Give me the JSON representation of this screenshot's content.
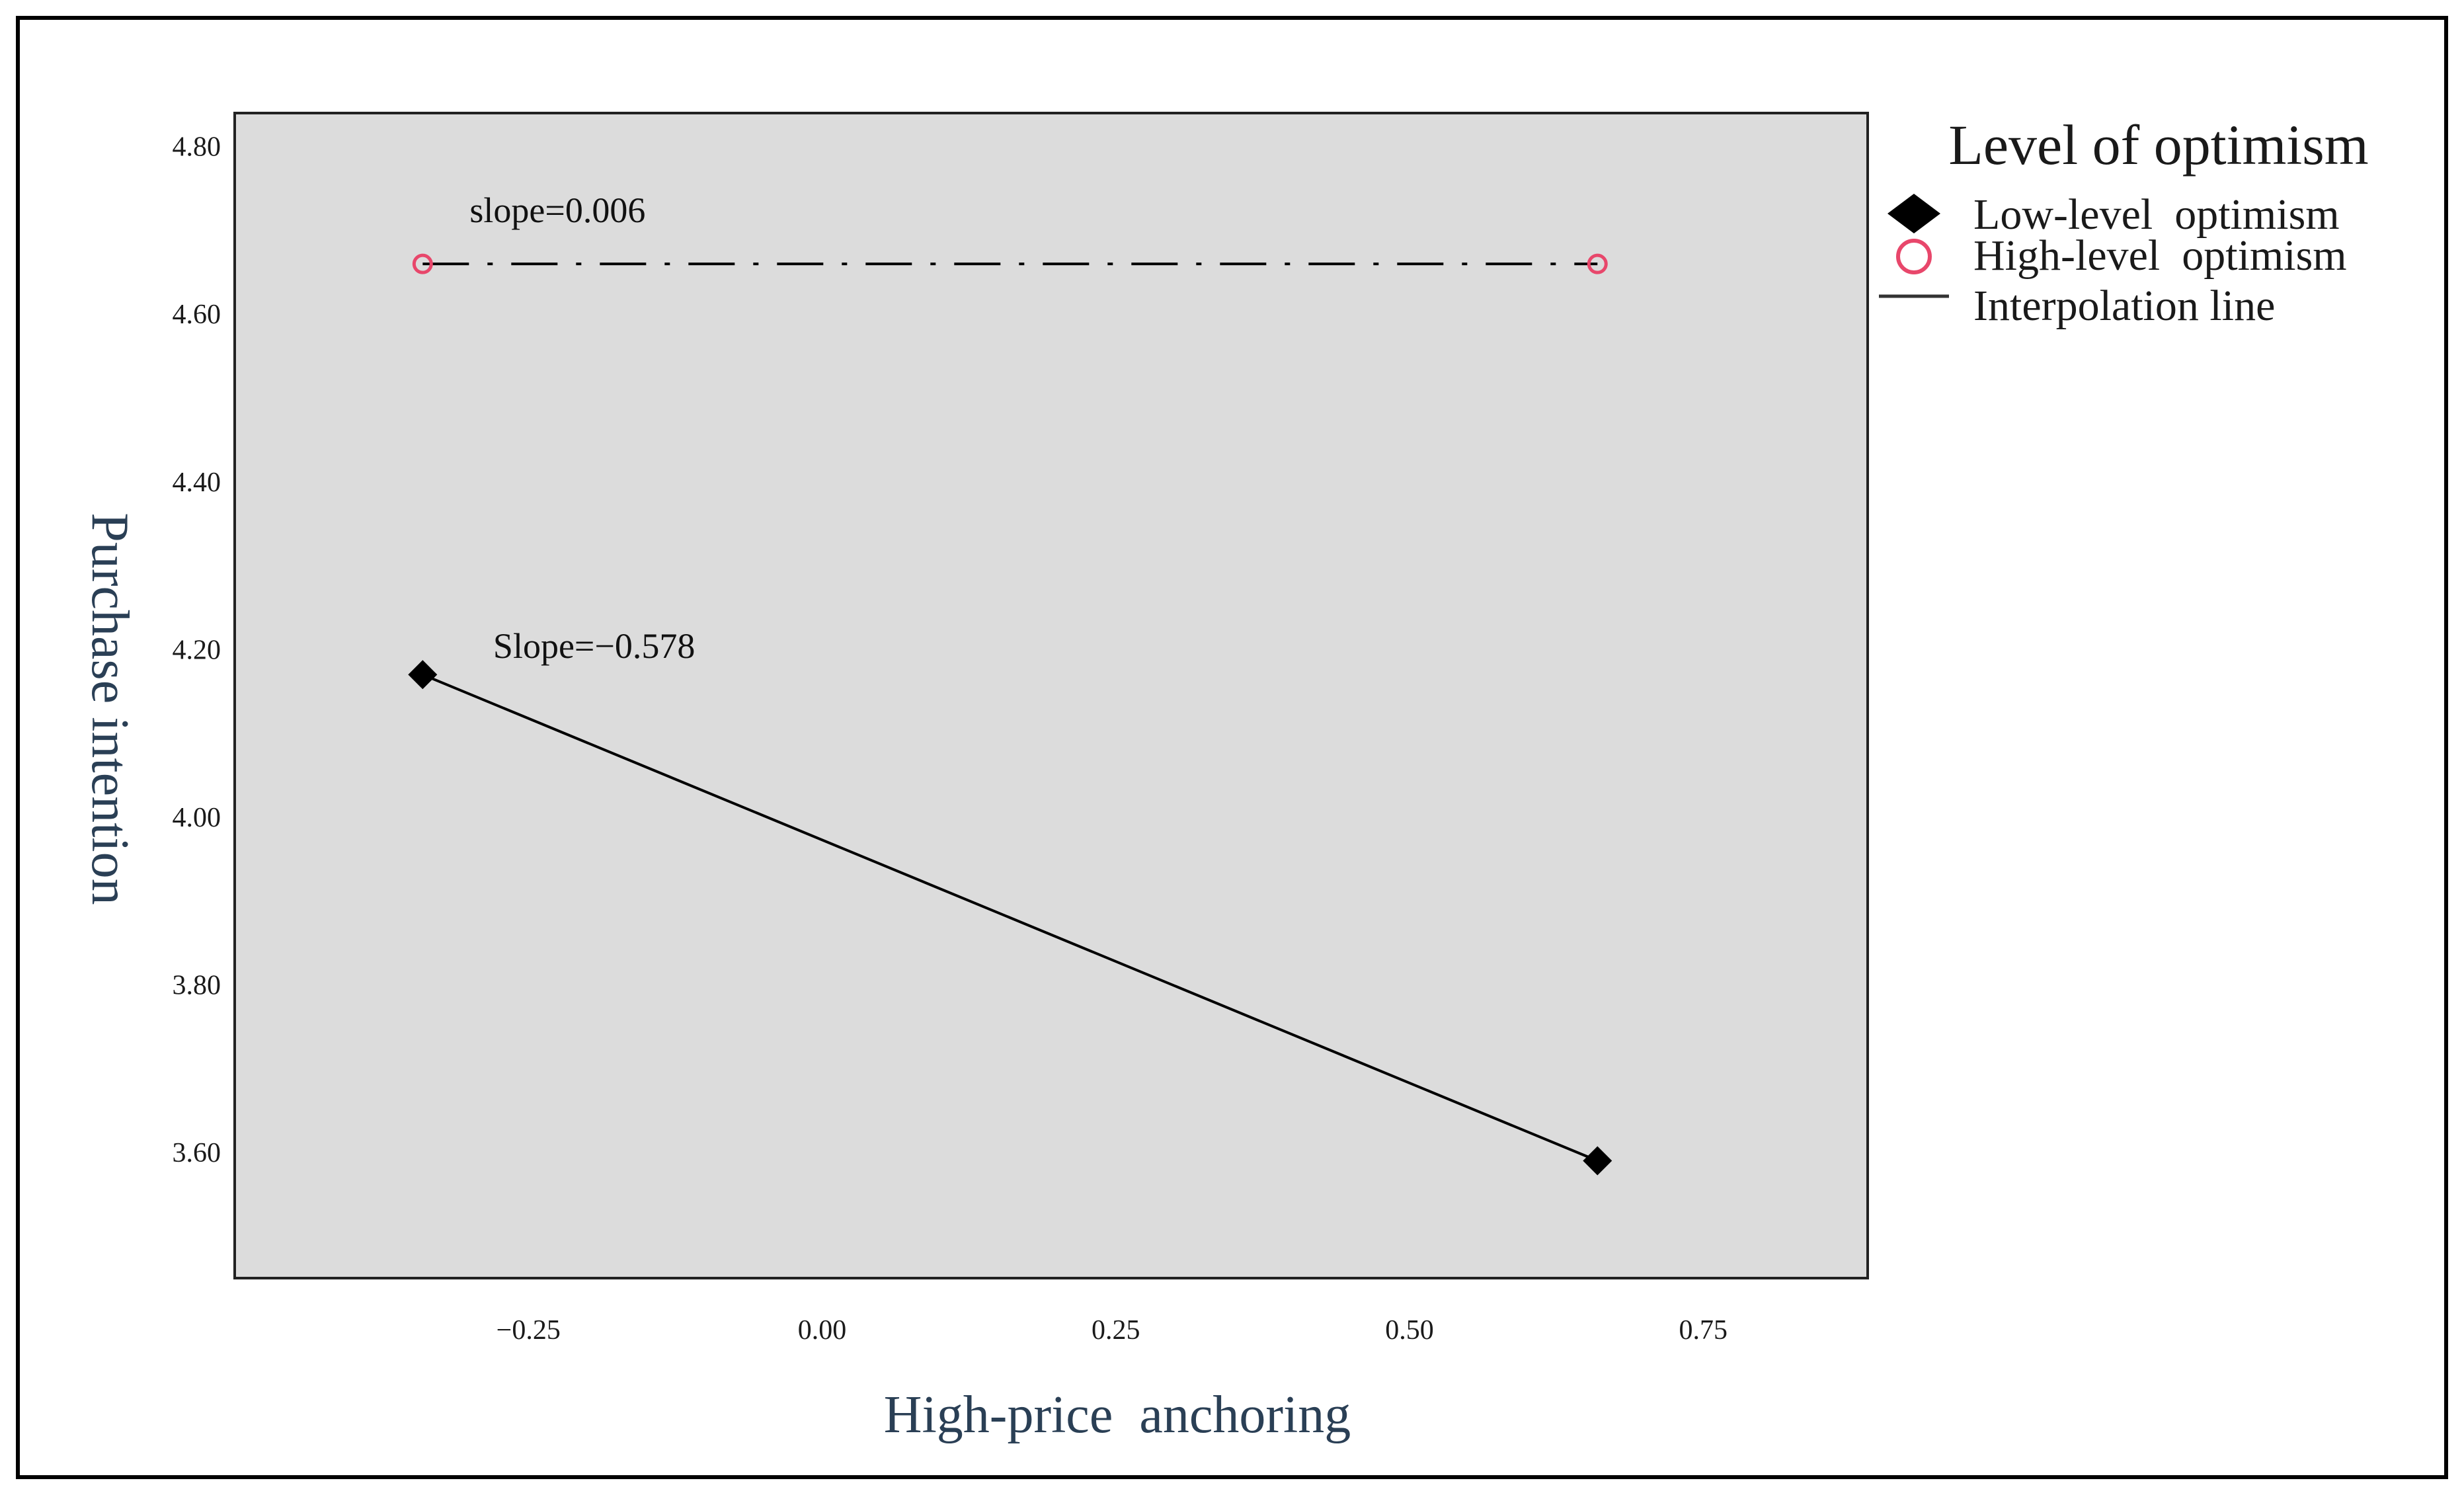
{
  "chart_data": {
    "type": "line",
    "title": "",
    "xlabel": "High-price  anchoring",
    "ylabel": "Purchase intention",
    "xlim": [
      -0.5,
      0.89
    ],
    "ylim": [
      3.45,
      4.84
    ],
    "x_ticks": [
      -0.25,
      0.0,
      0.25,
      0.5,
      0.75
    ],
    "x_tick_labels": [
      "−0.25",
      "0.00",
      "0.25",
      "0.50",
      "0.75"
    ],
    "y_ticks": [
      3.6,
      3.8,
      4.0,
      4.2,
      4.4,
      4.6,
      4.8
    ],
    "y_tick_labels": [
      "3.60",
      "3.80",
      "4.00",
      "4.20",
      "4.40",
      "4.60",
      "4.80"
    ],
    "grid": false,
    "plot_background": "#dcdcdc",
    "legend": {
      "title": "Level of optimism",
      "placement": "right, outside plot area, top",
      "entries": [
        {
          "label": "Low-level  optimism",
          "marker": "filled-diamond",
          "color": "#000000"
        },
        {
          "label": "High-level  optimism",
          "marker": "open-circle",
          "color": "#e8476b"
        },
        {
          "label": "Interpolation line",
          "marker": "line",
          "color": "#333333"
        }
      ]
    },
    "series": [
      {
        "name": "Low-level  optimism",
        "x": [
          -0.34,
          0.66
        ],
        "y": [
          4.17,
          3.59
        ],
        "marker": "filled-diamond",
        "marker_color": "#000000",
        "line_style": "solid",
        "line_color": "#000000"
      },
      {
        "name": "High-level  optimism",
        "x": [
          -0.34,
          0.66
        ],
        "y": [
          4.66,
          4.66
        ],
        "marker": "open-circle",
        "marker_color": "#e8476b",
        "line_style": "dash-dot",
        "line_color": "#000000"
      }
    ],
    "annotations": [
      {
        "text": "slope=0.006",
        "x": -0.3,
        "y": 4.71
      },
      {
        "text": "Slope=−0.578",
        "x": -0.28,
        "y": 4.19
      }
    ]
  }
}
